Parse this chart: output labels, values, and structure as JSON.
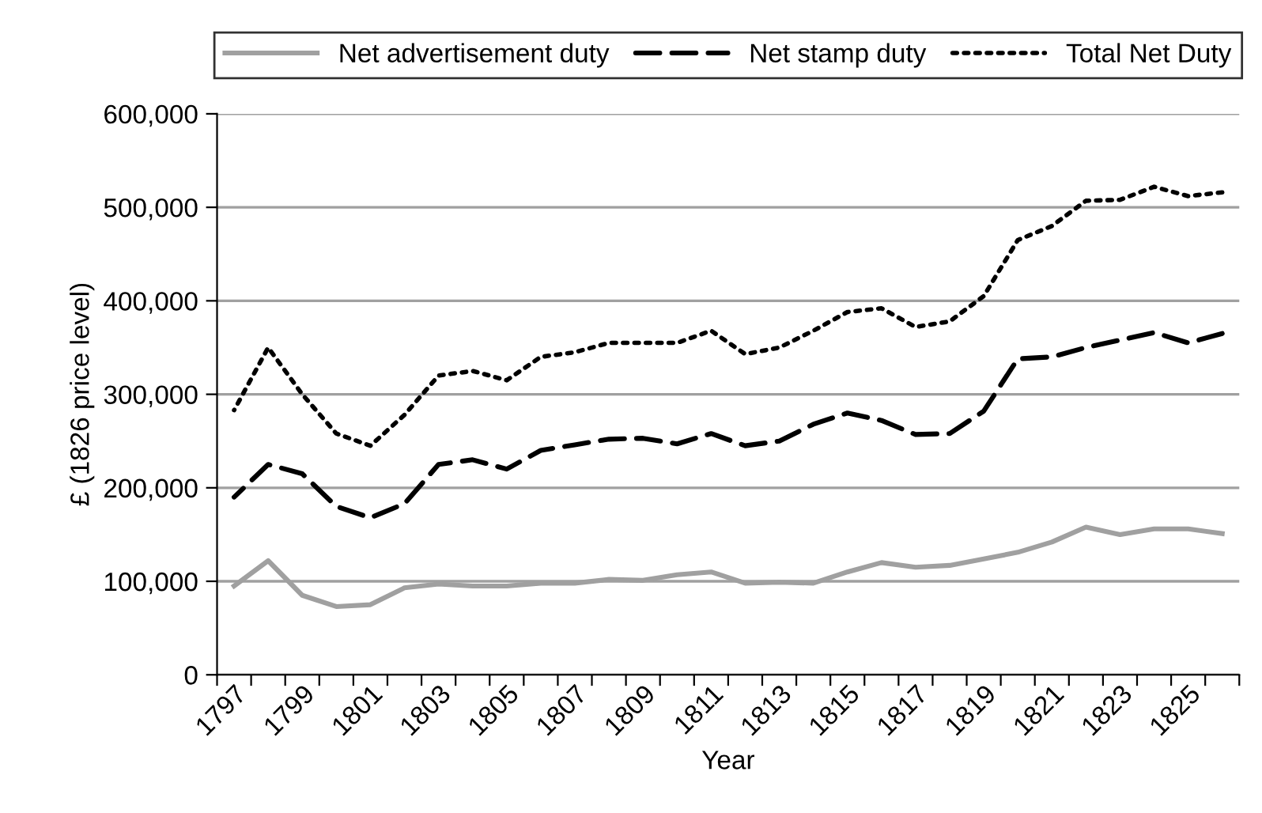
{
  "chart_data": {
    "type": "line",
    "xlabel": "Year",
    "ylabel": "£ (1826 price level)",
    "categories": [
      "1797",
      null,
      "1799",
      null,
      "1801",
      null,
      "1803",
      null,
      "1805",
      null,
      "1807",
      null,
      "1809",
      null,
      "1811",
      null,
      "1813",
      null,
      "1815",
      null,
      "1817",
      null,
      "1819",
      null,
      "1821",
      null,
      "1823",
      null,
      "1825",
      null
    ],
    "series": [
      {
        "name": "Net advertisement duty",
        "color": "#a0a0a0",
        "line_style": "solid",
        "values": [
          95000,
          122000,
          85000,
          73000,
          75000,
          93000,
          97000,
          95000,
          95000,
          98000,
          98000,
          102000,
          101000,
          107000,
          110000,
          98000,
          99000,
          98000,
          110000,
          120000,
          115000,
          117000,
          124000,
          131000,
          142000,
          158000,
          150000,
          156000,
          156000,
          151000
        ]
      },
      {
        "name": "Net stamp duty",
        "color": "#000000",
        "line_style": "dashed",
        "values": [
          190000,
          225000,
          215000,
          180000,
          168000,
          183000,
          225000,
          230000,
          220000,
          240000,
          246000,
          252000,
          253000,
          247000,
          258000,
          245000,
          250000,
          268000,
          280000,
          272000,
          257000,
          258000,
          282000,
          338000,
          340000,
          350000,
          358000,
          366000,
          355000,
          365000
        ]
      },
      {
        "name": "Total Net Duty",
        "color": "#000000",
        "line_style": "dotted",
        "values": [
          283000,
          350000,
          300000,
          258000,
          245000,
          278000,
          320000,
          325000,
          315000,
          340000,
          345000,
          355000,
          355000,
          355000,
          368000,
          343000,
          350000,
          368000,
          388000,
          392000,
          372000,
          378000,
          405000,
          465000,
          480000,
          507000,
          508000,
          522000,
          512000,
          516000
        ]
      }
    ],
    "ylim": [
      0,
      600000
    ],
    "yticks": [
      {
        "value": 0,
        "label": "0"
      },
      {
        "value": 100000,
        "label": "100,000"
      },
      {
        "value": 200000,
        "label": "200,000"
      },
      {
        "value": 300000,
        "label": "300,000"
      },
      {
        "value": 400000,
        "label": "400,000"
      },
      {
        "value": 500000,
        "label": "500,000"
      },
      {
        "value": 600000,
        "label": "600,000"
      }
    ],
    "grid": "y",
    "legend": "top",
    "marker": "none"
  }
}
